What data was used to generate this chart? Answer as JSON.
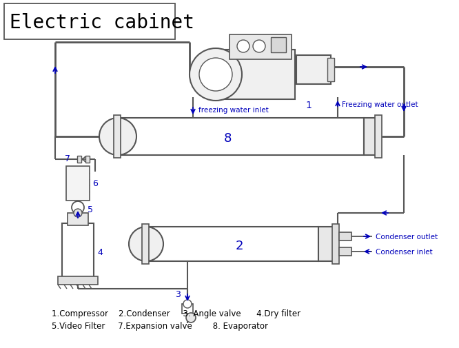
{
  "title": "Electric cabinet",
  "bg_color": "#ffffff",
  "lc": "#555555",
  "bc": "#0000bb",
  "tc": "#000000",
  "fig_w": 6.66,
  "fig_h": 5.06,
  "dpi": 100,
  "legend_line1": "1.Compressor    2.Condenser     3. Angle valve      4.Dry filter",
  "legend_line2": "5.Video Filter     7.Expansion valve        8. Evaporator",
  "label_fwi": "freezing water inlet",
  "label_fwo": "Freezing water outlet",
  "label_co": "Condenser outlet",
  "label_ci": "Condenser inlet"
}
